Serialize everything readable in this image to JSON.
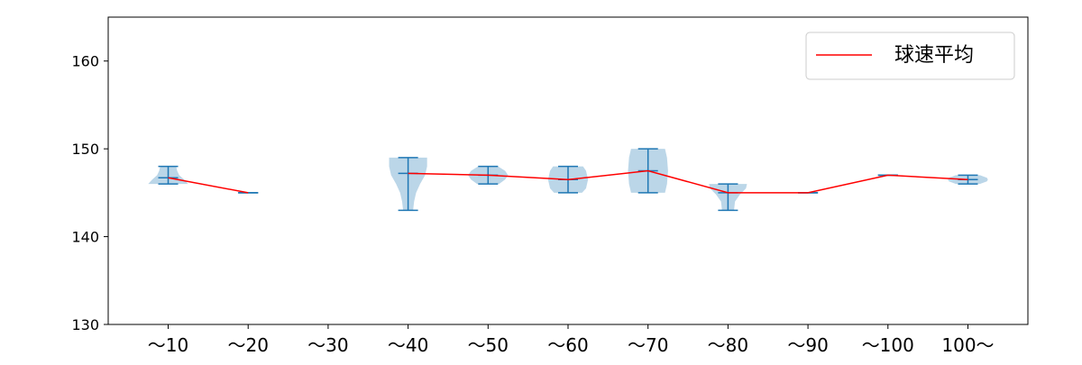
{
  "chart_data": {
    "type": "violin",
    "categories": [
      "~10",
      "~20",
      "~30",
      "~40",
      "~50",
      "~60",
      "~70",
      "~80",
      "~90",
      "~100",
      "100~"
    ],
    "category_labels": [
      "～10",
      "～20",
      "～30",
      "～40",
      "～50",
      "～60",
      "～70",
      "～80",
      "～90",
      "～100",
      "100～"
    ],
    "ylim": [
      130,
      165
    ],
    "yticks": [
      130,
      140,
      150,
      160
    ],
    "grid": false,
    "legend": {
      "position": "top-right",
      "entries": [
        "球速平均"
      ]
    },
    "colors": {
      "violin_fill": "#1f77b4",
      "violin_edges": "#1f77b4",
      "mean_line": "#ff0000"
    },
    "violins": [
      {
        "min": 146,
        "max": 148,
        "center": 146.7,
        "density": [
          [
            146,
            1.0
          ],
          [
            146.5,
            0.8
          ],
          [
            147,
            0.55
          ],
          [
            147.5,
            0.45
          ],
          [
            148,
            0.4
          ]
        ]
      },
      {
        "min": 145,
        "max": 145,
        "center": 145,
        "density": []
      },
      null,
      {
        "min": 143,
        "max": 149,
        "center": 147.2,
        "density": [
          [
            143,
            0.25
          ],
          [
            144,
            0.3
          ],
          [
            145,
            0.4
          ],
          [
            146,
            0.6
          ],
          [
            147,
            0.85
          ],
          [
            148,
            0.95
          ],
          [
            149,
            0.95
          ]
        ]
      },
      {
        "min": 146,
        "max": 148,
        "center": 147,
        "density": [
          [
            146,
            0.55
          ],
          [
            146.5,
            0.85
          ],
          [
            147,
            1.0
          ],
          [
            147.5,
            0.85
          ],
          [
            148,
            0.5
          ]
        ]
      },
      {
        "min": 145,
        "max": 148,
        "center": 146.5,
        "density": [
          [
            145,
            0.7
          ],
          [
            145.5,
            0.9
          ],
          [
            146.5,
            1.0
          ],
          [
            147.5,
            0.9
          ],
          [
            148,
            0.75
          ]
        ]
      },
      {
        "min": 145,
        "max": 150,
        "center": 147.5,
        "density": [
          [
            145,
            0.85
          ],
          [
            146,
            0.95
          ],
          [
            147.5,
            1.0
          ],
          [
            149,
            0.95
          ],
          [
            150,
            0.85
          ]
        ]
      },
      {
        "min": 143,
        "max": 146,
        "center": 145,
        "density": [
          [
            143,
            0.3
          ],
          [
            144,
            0.35
          ],
          [
            144.8,
            0.6
          ],
          [
            145.5,
            0.9
          ],
          [
            146,
            0.95
          ]
        ]
      },
      {
        "min": 145,
        "max": 145,
        "center": 145,
        "density": []
      },
      {
        "min": 147,
        "max": 147,
        "center": 147,
        "density": []
      },
      {
        "min": 146,
        "max": 147,
        "center": 146.5,
        "density": [
          [
            146,
            0.6
          ],
          [
            146.3,
            0.95
          ],
          [
            146.5,
            1.0
          ],
          [
            146.7,
            0.95
          ],
          [
            147,
            0.6
          ]
        ]
      }
    ],
    "mean_line": [
      146.7,
      145,
      null,
      147.2,
      147,
      146.5,
      147.5,
      145,
      145,
      147,
      146.5
    ]
  }
}
